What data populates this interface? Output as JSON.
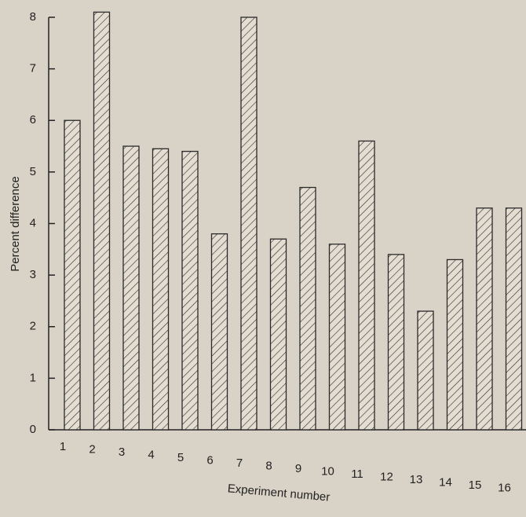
{
  "chart_data": {
    "type": "bar",
    "categories": [
      "1",
      "2",
      "3",
      "4",
      "5",
      "6",
      "7",
      "8",
      "9",
      "10",
      "11",
      "12",
      "13",
      "14",
      "15",
      "16"
    ],
    "values": [
      6.0,
      8.1,
      5.5,
      5.45,
      5.4,
      3.8,
      8.0,
      3.7,
      4.7,
      3.6,
      5.6,
      3.4,
      2.3,
      3.3,
      4.3,
      4.3
    ],
    "color": "#2a2a2a",
    "xlabel": "Experiment number",
    "ylabel": "Percent difference",
    "ylim": [
      0,
      8
    ],
    "yticks": [
      0,
      1,
      2,
      3,
      4,
      5,
      6,
      7,
      8
    ]
  }
}
